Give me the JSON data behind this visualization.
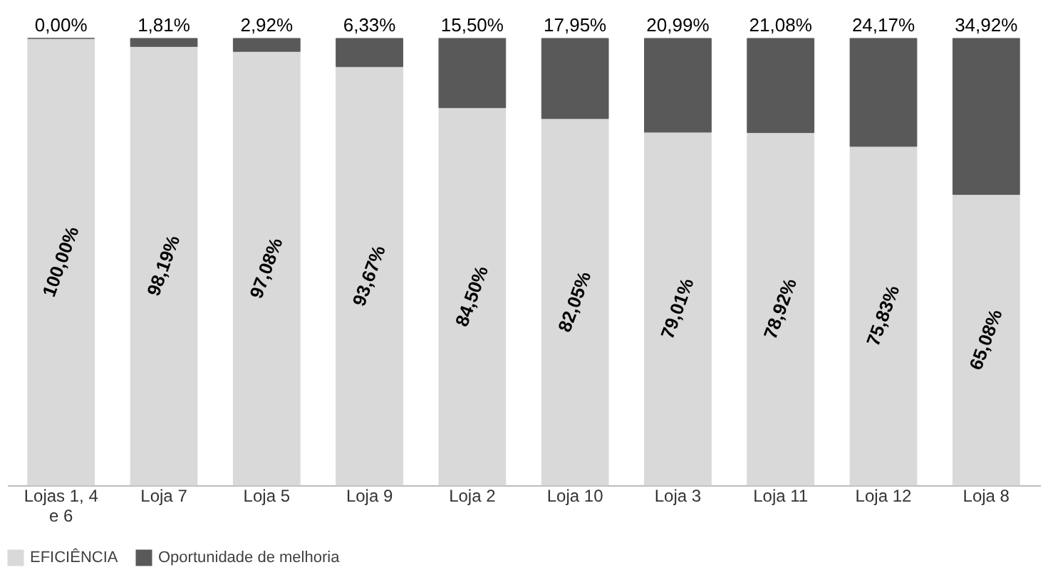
{
  "chart_data": {
    "type": "bar",
    "stacked": true,
    "legend": "bottom",
    "categories": [
      "Lojas 1, 4 e 6",
      "Loja 7",
      "Loja 5",
      "Loja 9",
      "Loja 2",
      "Loja 10",
      "Loja 3",
      "Loja 11",
      "Loja 12",
      "Loja 8"
    ],
    "series": [
      {
        "name": "EFICIÊNCIA",
        "color": "#d9d9d9",
        "values": [
          100.0,
          98.19,
          97.08,
          93.67,
          84.5,
          82.05,
          79.01,
          78.92,
          75.83,
          65.08
        ],
        "value_labels": [
          "100,00%",
          "98,19%",
          "97,08%",
          "93,67%",
          "84,50%",
          "82,05%",
          "79,01%",
          "78,92%",
          "75,83%",
          "65,08%"
        ]
      },
      {
        "name": "Oportunidade de melhoria",
        "color": "#595959",
        "values": [
          0.0,
          1.81,
          2.92,
          6.33,
          15.5,
          17.95,
          20.99,
          21.08,
          24.17,
          34.92
        ],
        "value_labels": [
          "0,00%",
          "1,81%",
          "2,92%",
          "6,33%",
          "15,50%",
          "17,95%",
          "20,99%",
          "21,08%",
          "24,17%",
          "34,92%"
        ]
      }
    ]
  }
}
